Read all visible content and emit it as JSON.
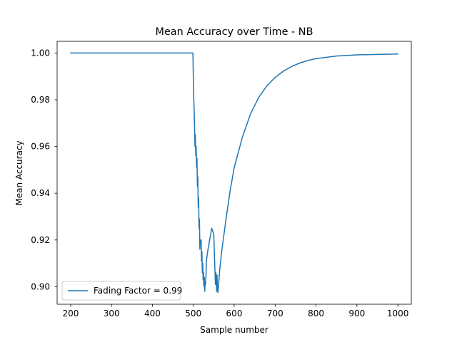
{
  "chart_data": {
    "type": "line",
    "title": "Mean Accuracy over Time - NB",
    "xlabel": "Sample number",
    "ylabel": "Mean Accuracy",
    "xlim": [
      167,
      1033
    ],
    "ylim": [
      0.8925,
      1.005
    ],
    "xticks": [
      200,
      300,
      400,
      500,
      600,
      700,
      800,
      900,
      1000
    ],
    "yticks": [
      0.9,
      0.92,
      0.94,
      0.96,
      0.98,
      1.0
    ],
    "ytick_labels": [
      "0.90",
      "0.92",
      "0.94",
      "0.96",
      "0.98",
      "1.00"
    ],
    "grid": false,
    "legend_position": "lower-left",
    "series": [
      {
        "name": "Fading Factor = 0.99",
        "color": "#1f77b4",
        "x": [
          200,
          499,
          500,
          501,
          502,
          503,
          504,
          505,
          506,
          507,
          508,
          509,
          510,
          511,
          512,
          513,
          514,
          515,
          516,
          517,
          518,
          519,
          520,
          521,
          522,
          523,
          524,
          525,
          526,
          527,
          528,
          529,
          530,
          531,
          532,
          535,
          540,
          545,
          550,
          554,
          555,
          556,
          557,
          558,
          559,
          560,
          561,
          565,
          570,
          580,
          590,
          600,
          620,
          640,
          660,
          680,
          700,
          720,
          740,
          760,
          780,
          800,
          850,
          900,
          950,
          1000
        ],
        "y": [
          1.0,
          1.0,
          0.99,
          0.981,
          0.976,
          0.969,
          0.96,
          0.965,
          0.956,
          0.96,
          0.951,
          0.955,
          0.943,
          0.947,
          0.934,
          0.938,
          0.925,
          0.929,
          0.916,
          0.92,
          0.919,
          0.92,
          0.911,
          0.915,
          0.906,
          0.91,
          0.903,
          0.906,
          0.9,
          0.904,
          0.898,
          0.902,
          0.901,
          0.905,
          0.911,
          0.915,
          0.92,
          0.925,
          0.9225,
          0.901,
          0.906,
          0.904,
          0.898,
          0.905,
          0.9,
          0.8975,
          0.899,
          0.908,
          0.916,
          0.929,
          0.941,
          0.951,
          0.964,
          0.974,
          0.981,
          0.986,
          0.9895,
          0.9922,
          0.9942,
          0.9957,
          0.9968,
          0.9976,
          0.9987,
          0.9992,
          0.9994,
          0.9996
        ]
      }
    ]
  }
}
